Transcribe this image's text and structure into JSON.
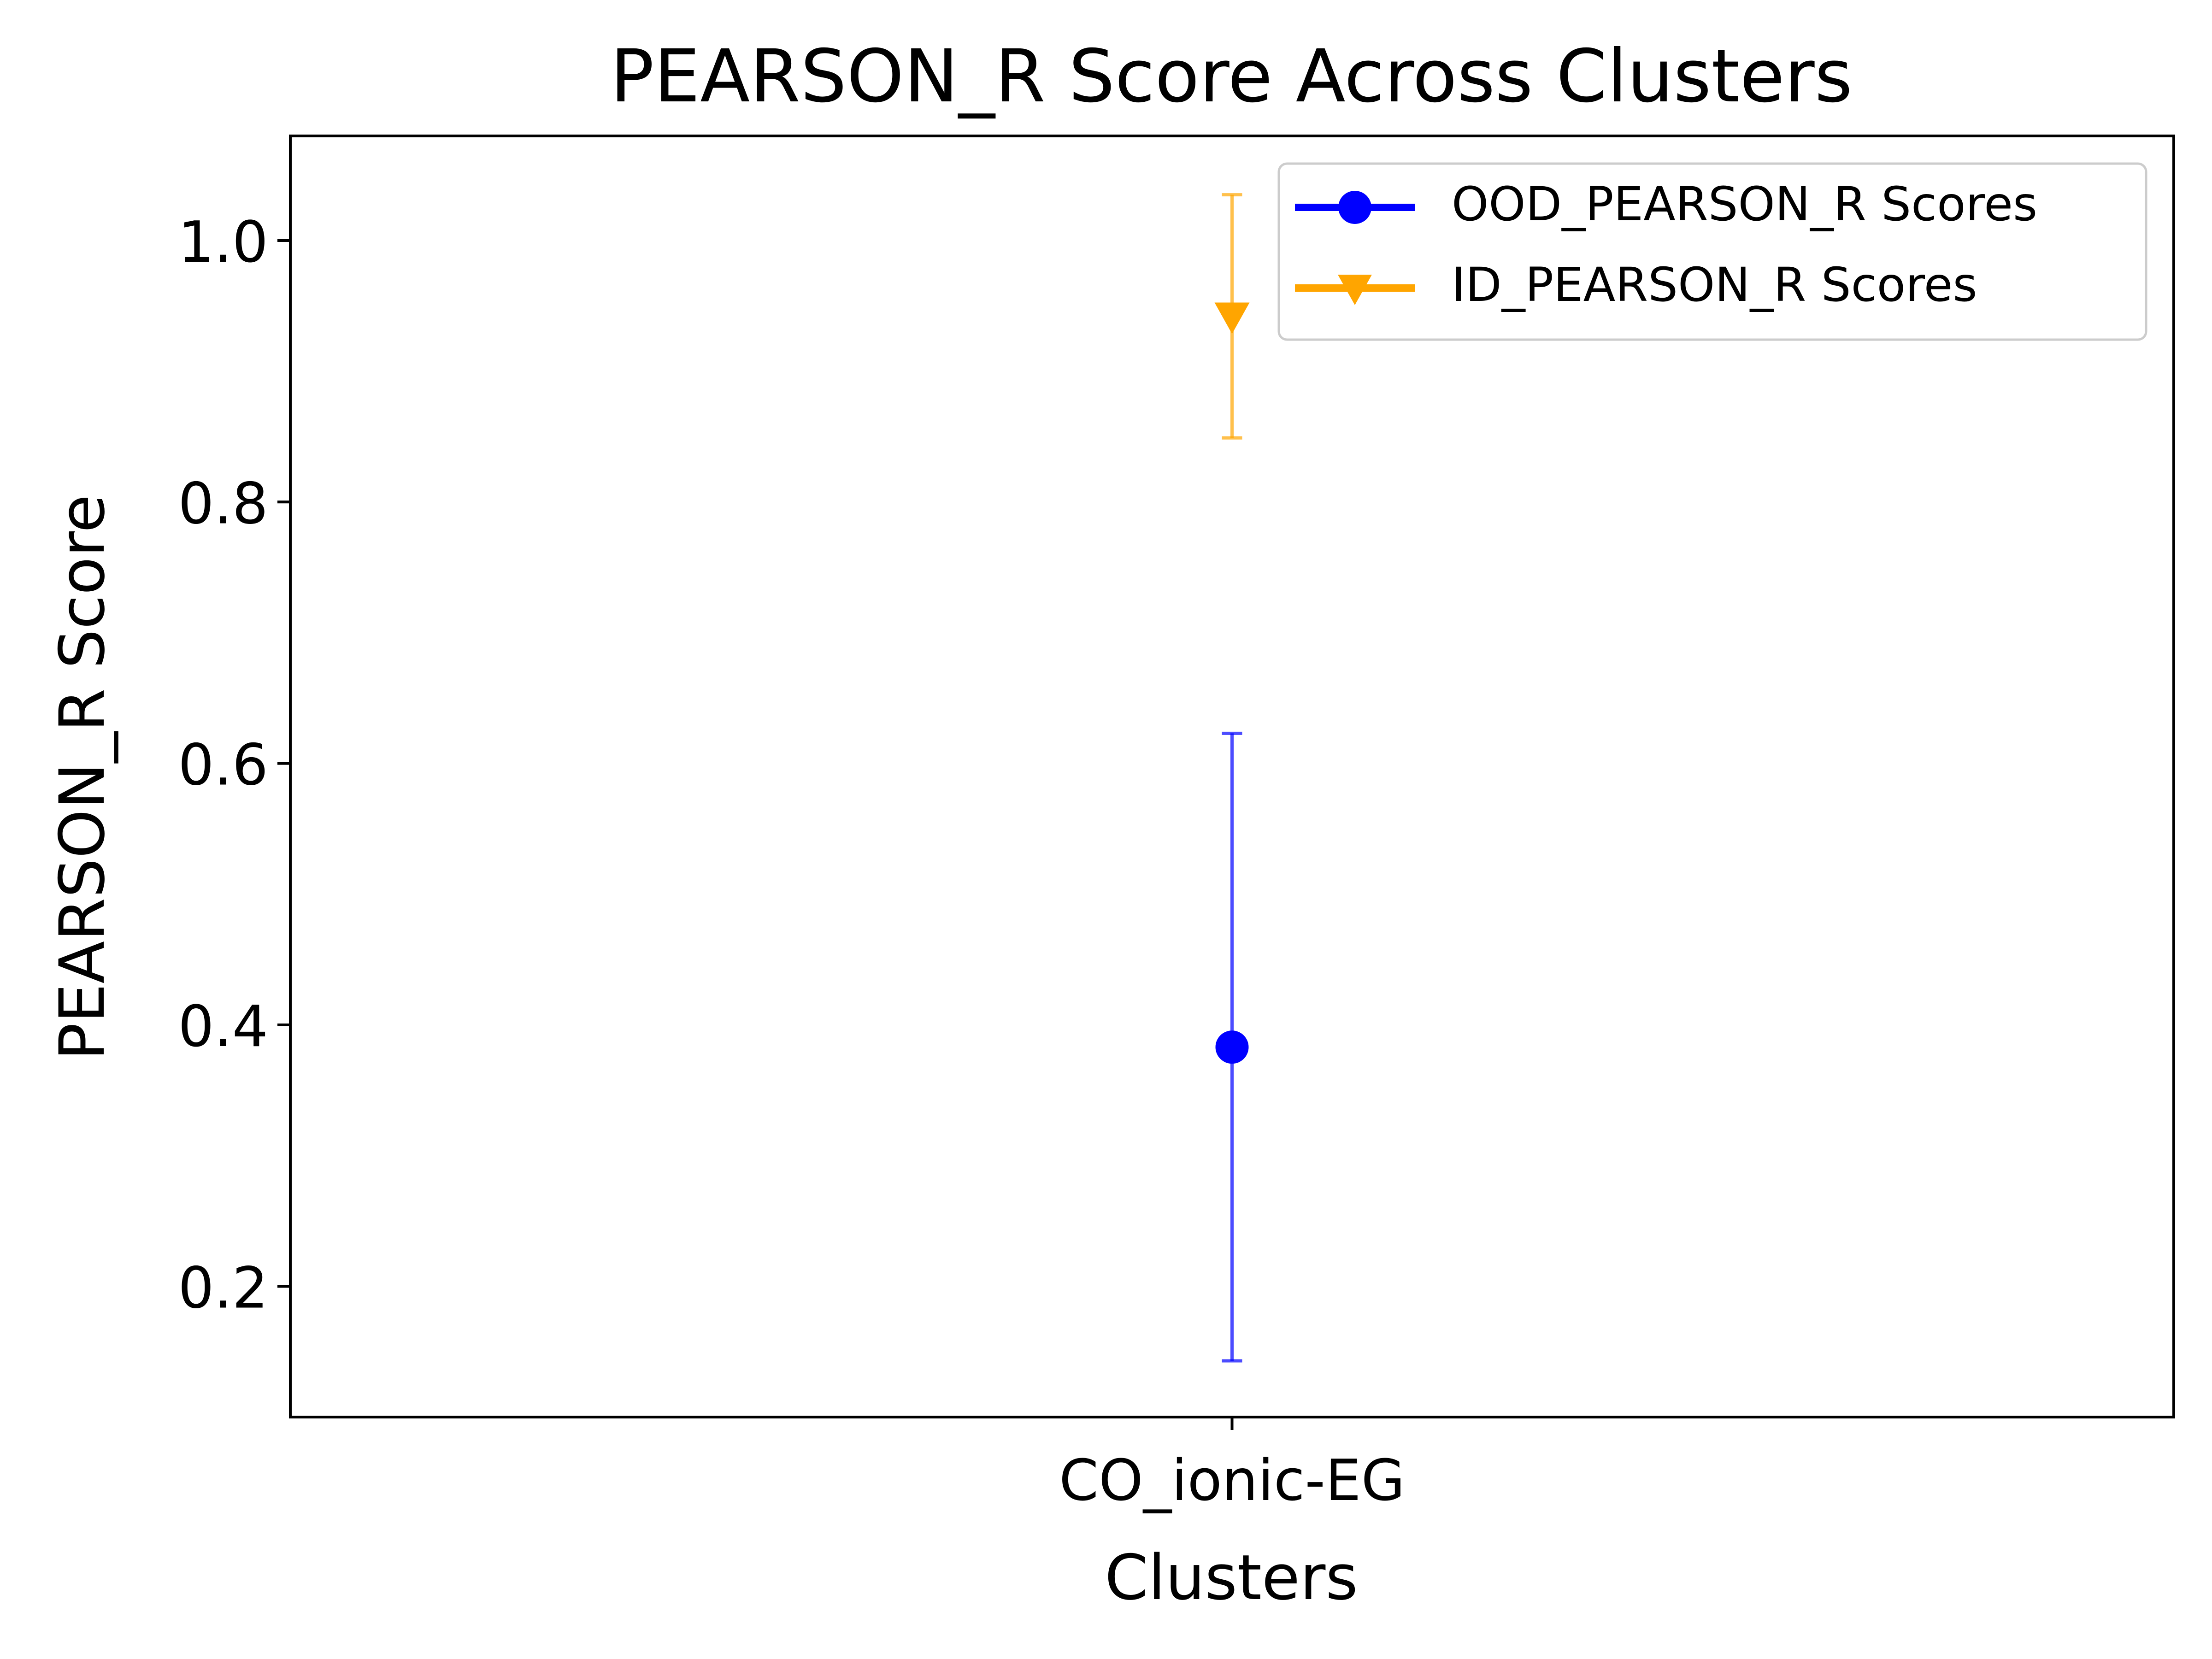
{
  "chart_data": {
    "type": "scatter",
    "title": "PEARSON_R Score Across Clusters",
    "xlabel": "Clusters",
    "ylabel": "PEARSON_R Score",
    "categories": [
      "CO_ionic-EG"
    ],
    "ylim": [
      0.1,
      1.08
    ],
    "yticks": [
      0.2,
      0.4,
      0.6,
      0.8,
      1.0
    ],
    "ytick_labels": [
      "0.2",
      "0.4",
      "0.6",
      "0.8",
      "1.0"
    ],
    "grid": false,
    "legend_position": "top-right",
    "series": [
      {
        "name": "OOD_PEARSON_R Scores",
        "marker": "circle",
        "color": "#0000ff",
        "values": [
          0.383
        ],
        "error": [
          0.24
        ]
      },
      {
        "name": "ID_PEARSON_R Scores",
        "marker": "triangle-down",
        "color": "#ffa500",
        "values": [
          0.942
        ],
        "error": [
          0.093
        ]
      }
    ]
  }
}
